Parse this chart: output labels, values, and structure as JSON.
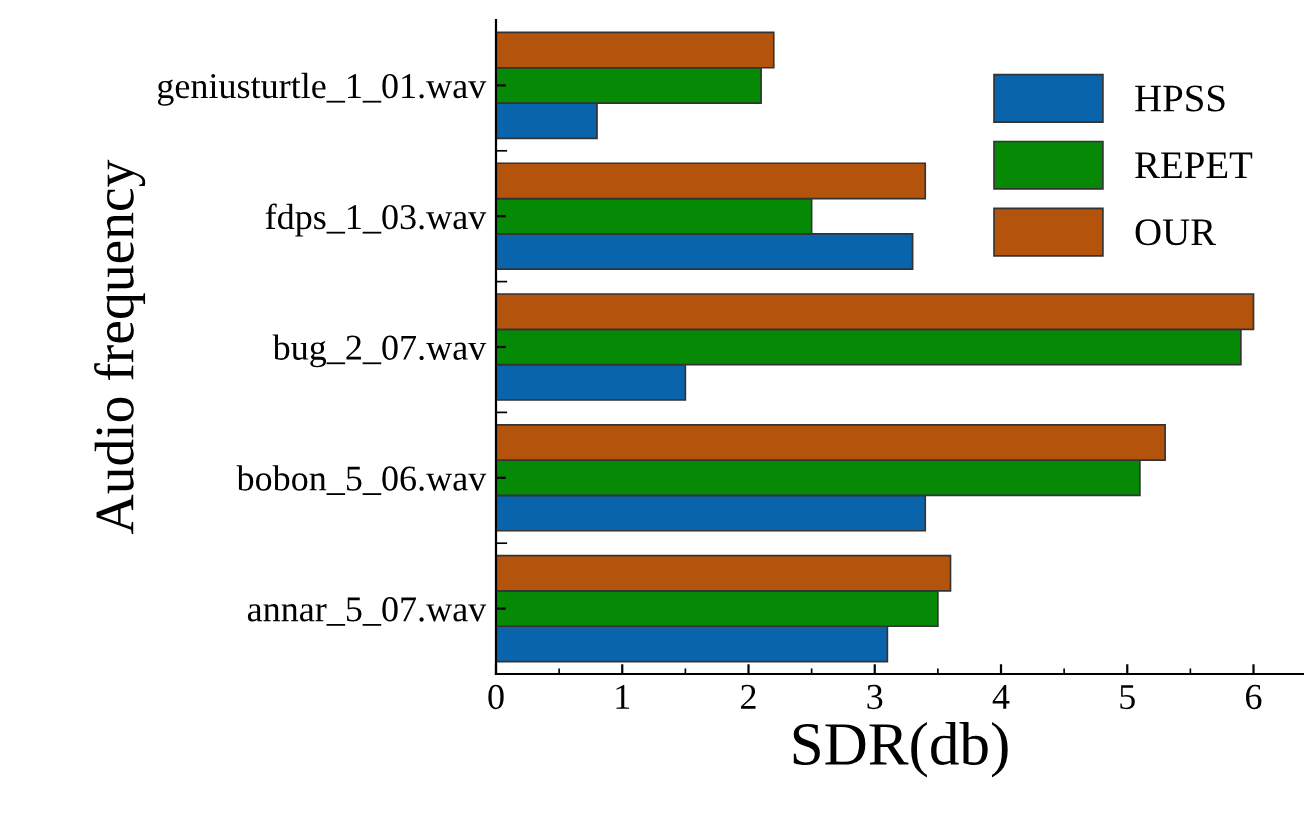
{
  "chart_data": {
    "type": "bar",
    "orientation": "horizontal",
    "xlabel": "SDR(db)",
    "ylabel": "Audio frequency",
    "categories": [
      "geniusturtle_1_01.wav",
      "fdps_1_03.wav",
      "bug_2_07.wav",
      "bobon_5_06.wav",
      "annar_5_07.wav"
    ],
    "series": [
      {
        "name": "HPSS",
        "color": "#0a64ac",
        "values": [
          0.8,
          3.3,
          1.5,
          3.4,
          3.1
        ]
      },
      {
        "name": "REPET",
        "color": "#068a06",
        "values": [
          2.1,
          2.5,
          5.9,
          5.1,
          3.5
        ]
      },
      {
        "name": "OUR",
        "color": "#b4540c",
        "values": [
          2.2,
          3.4,
          6.0,
          5.3,
          3.6
        ]
      }
    ],
    "xlim": [
      0,
      6.4
    ],
    "xticks": [
      0,
      1,
      2,
      3,
      4,
      5,
      6
    ],
    "grid": false,
    "legend": "top right"
  }
}
